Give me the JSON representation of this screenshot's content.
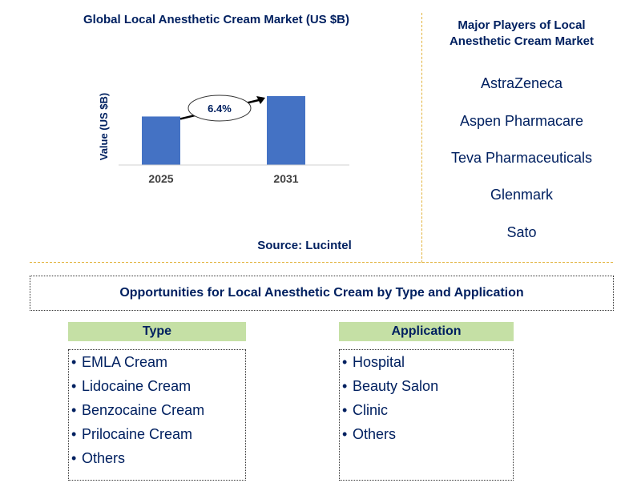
{
  "chart_data": {
    "type": "bar",
    "title": "Global Local Anesthetic Cream Market (US $B)",
    "ylabel": "Value (US $B)",
    "xlabel": "",
    "categories": [
      "2025",
      "2031"
    ],
    "values": [
      1.0,
      1.42
    ],
    "cagr_label": "6.4%",
    "bar_color": "#4472c4",
    "source": "Source: Lucintel"
  },
  "players": {
    "title": "Major Players of Local Anesthetic Cream Market",
    "items": [
      "AstraZeneca",
      "Aspen Pharmacare",
      "Teva Pharmaceuticals",
      "Glenmark",
      "Sato"
    ]
  },
  "opportunities": {
    "title": "Opportunities for Local Anesthetic Cream by Type and Application",
    "type_heading": "Type",
    "type_items": [
      "EMLA Cream",
      "Lidocaine Cream",
      "Benzocaine Cream",
      "Prilocaine Cream",
      "Others"
    ],
    "application_heading": "Application",
    "application_items": [
      "Hospital",
      "Beauty Salon",
      "Clinic",
      "Others"
    ]
  },
  "colors": {
    "text": "#002060",
    "header_fill": "#c5e0a5",
    "divider": "#e2b33c"
  }
}
